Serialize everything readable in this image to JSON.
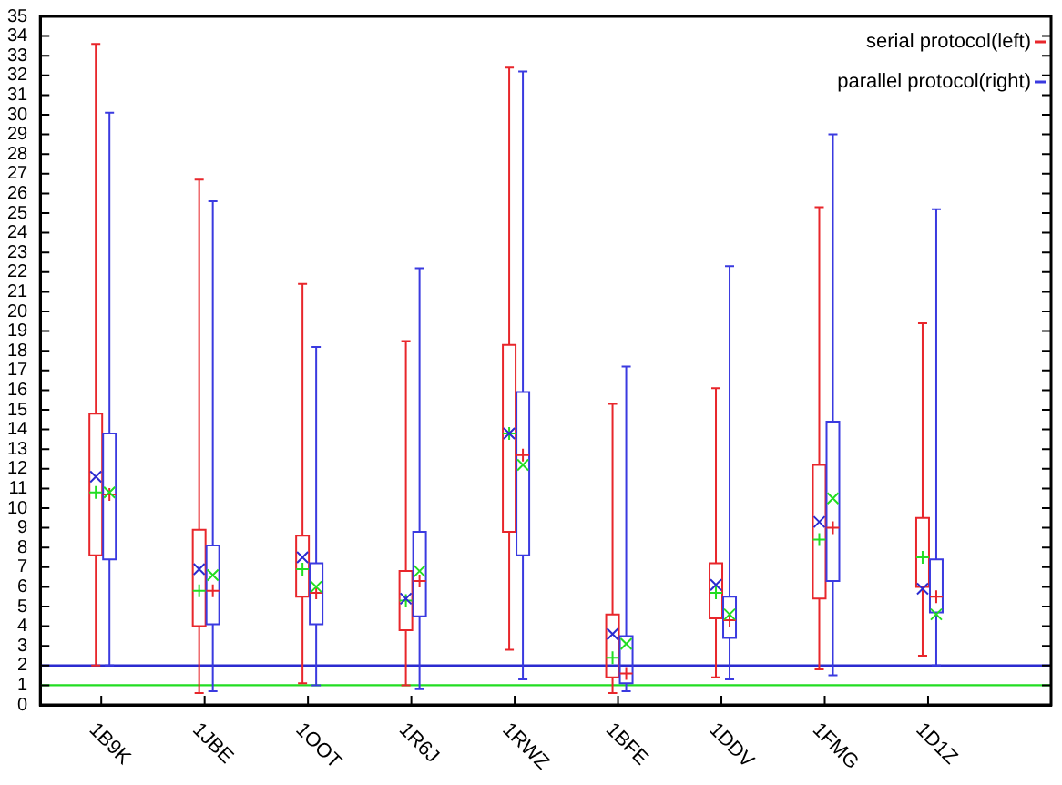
{
  "chart_data": {
    "type": "box",
    "categories": [
      "1B9K",
      "1JBE",
      "1OOT",
      "1R6J",
      "1RWZ",
      "1BFE",
      "1DDV",
      "1FMG",
      "1D1Z"
    ],
    "series": [
      {
        "name": "serial protocol(left)",
        "color": "#e8262b",
        "colors": [
          [
            "#22dd22",
            "#2b2bd0"
          ],
          [
            "#22dd22",
            "#2b2bd0"
          ],
          [
            "#22dd22",
            "#2b2bd0"
          ],
          [
            "#22dd22",
            "#2b2bd0"
          ],
          [
            "#22dd22",
            "#2b2bd0"
          ],
          [
            "#22dd22",
            "#2b2bd0"
          ],
          [
            "#22dd22",
            "#2b2bd0"
          ],
          [
            "#22dd22",
            "#2b2bd0"
          ],
          [
            "#22dd22",
            "#2b2bd0"
          ]
        ],
        "boxes": [
          {
            "low": 2.0,
            "q1": 7.6,
            "median": 10.8,
            "q3": 14.8,
            "high": 33.6,
            "mean": 11.6
          },
          {
            "low": 0.6,
            "q1": 4.0,
            "median": 5.8,
            "q3": 8.9,
            "high": 26.7,
            "mean": 6.9
          },
          {
            "low": 1.1,
            "q1": 5.5,
            "median": 6.9,
            "q3": 8.6,
            "high": 21.4,
            "mean": 7.5
          },
          {
            "low": 1.0,
            "q1": 3.8,
            "median": 5.3,
            "q3": 6.8,
            "high": 18.5,
            "mean": 5.4
          },
          {
            "low": 2.8,
            "q1": 8.8,
            "median": 13.8,
            "q3": 18.3,
            "high": 32.4,
            "mean": 13.8
          },
          {
            "low": 0.6,
            "q1": 1.4,
            "median": 2.4,
            "q3": 4.6,
            "high": 15.3,
            "mean": 3.6
          },
          {
            "low": 1.4,
            "q1": 4.4,
            "median": 5.7,
            "q3": 7.2,
            "high": 16.1,
            "mean": 6.1
          },
          {
            "low": 1.8,
            "q1": 5.4,
            "median": 8.4,
            "q3": 12.2,
            "high": 25.3,
            "mean": 9.3
          },
          {
            "low": 2.5,
            "q1": 6.0,
            "median": 7.5,
            "q3": 9.5,
            "high": 19.4,
            "mean": 5.9
          }
        ]
      },
      {
        "name": "parallel protocol(right)",
        "color": "#3a3ae0",
        "colors": [
          [
            "#e8262b",
            "#22dd22"
          ],
          [
            "#e8262b",
            "#22dd22"
          ],
          [
            "#e8262b",
            "#22dd22"
          ],
          [
            "#e8262b",
            "#22dd22"
          ],
          [
            "#e8262b",
            "#22dd22"
          ],
          [
            "#e8262b",
            "#22dd22"
          ],
          [
            "#e8262b",
            "#22dd22"
          ],
          [
            "#e8262b",
            "#22dd22"
          ],
          [
            "#e8262b",
            "#22dd22"
          ]
        ],
        "boxes": [
          {
            "low": 2.0,
            "q1": 7.4,
            "median": 10.7,
            "q3": 13.8,
            "high": 30.1,
            "mean": 10.8
          },
          {
            "low": 0.7,
            "q1": 4.1,
            "median": 5.8,
            "q3": 8.1,
            "high": 25.6,
            "mean": 6.6
          },
          {
            "low": 1.0,
            "q1": 4.1,
            "median": 5.7,
            "q3": 7.2,
            "high": 18.2,
            "mean": 6.0
          },
          {
            "low": 0.8,
            "q1": 4.5,
            "median": 6.3,
            "q3": 8.8,
            "high": 22.2,
            "mean": 6.8
          },
          {
            "low": 1.3,
            "q1": 7.6,
            "median": 12.7,
            "q3": 15.9,
            "high": 32.2,
            "mean": 12.2
          },
          {
            "low": 0.7,
            "q1": 1.1,
            "median": 1.6,
            "q3": 3.5,
            "high": 17.2,
            "mean": 3.1
          },
          {
            "low": 1.3,
            "q1": 3.4,
            "median": 4.3,
            "q3": 5.5,
            "high": 22.3,
            "mean": 4.6
          },
          {
            "low": 1.5,
            "q1": 6.3,
            "median": 9.0,
            "q3": 14.4,
            "high": 29.0,
            "mean": 10.5
          },
          {
            "low": 2.0,
            "q1": 4.7,
            "median": 5.5,
            "q3": 7.4,
            "high": 25.2,
            "mean": 4.6
          }
        ]
      }
    ],
    "ylim": [
      0,
      35
    ],
    "yticks": [
      0,
      1,
      2,
      3,
      4,
      5,
      6,
      7,
      8,
      9,
      10,
      11,
      12,
      13,
      14,
      15,
      16,
      17,
      18,
      19,
      20,
      21,
      22,
      23,
      24,
      25,
      26,
      27,
      28,
      29,
      30,
      31,
      32,
      33,
      34,
      35
    ],
    "ref_lines": [
      {
        "axis": "y",
        "value": 2,
        "color": "#2b2bd0"
      },
      {
        "axis": "y",
        "value": 1,
        "color": "#22dd22"
      }
    ],
    "legend": "top right",
    "grid": false
  }
}
